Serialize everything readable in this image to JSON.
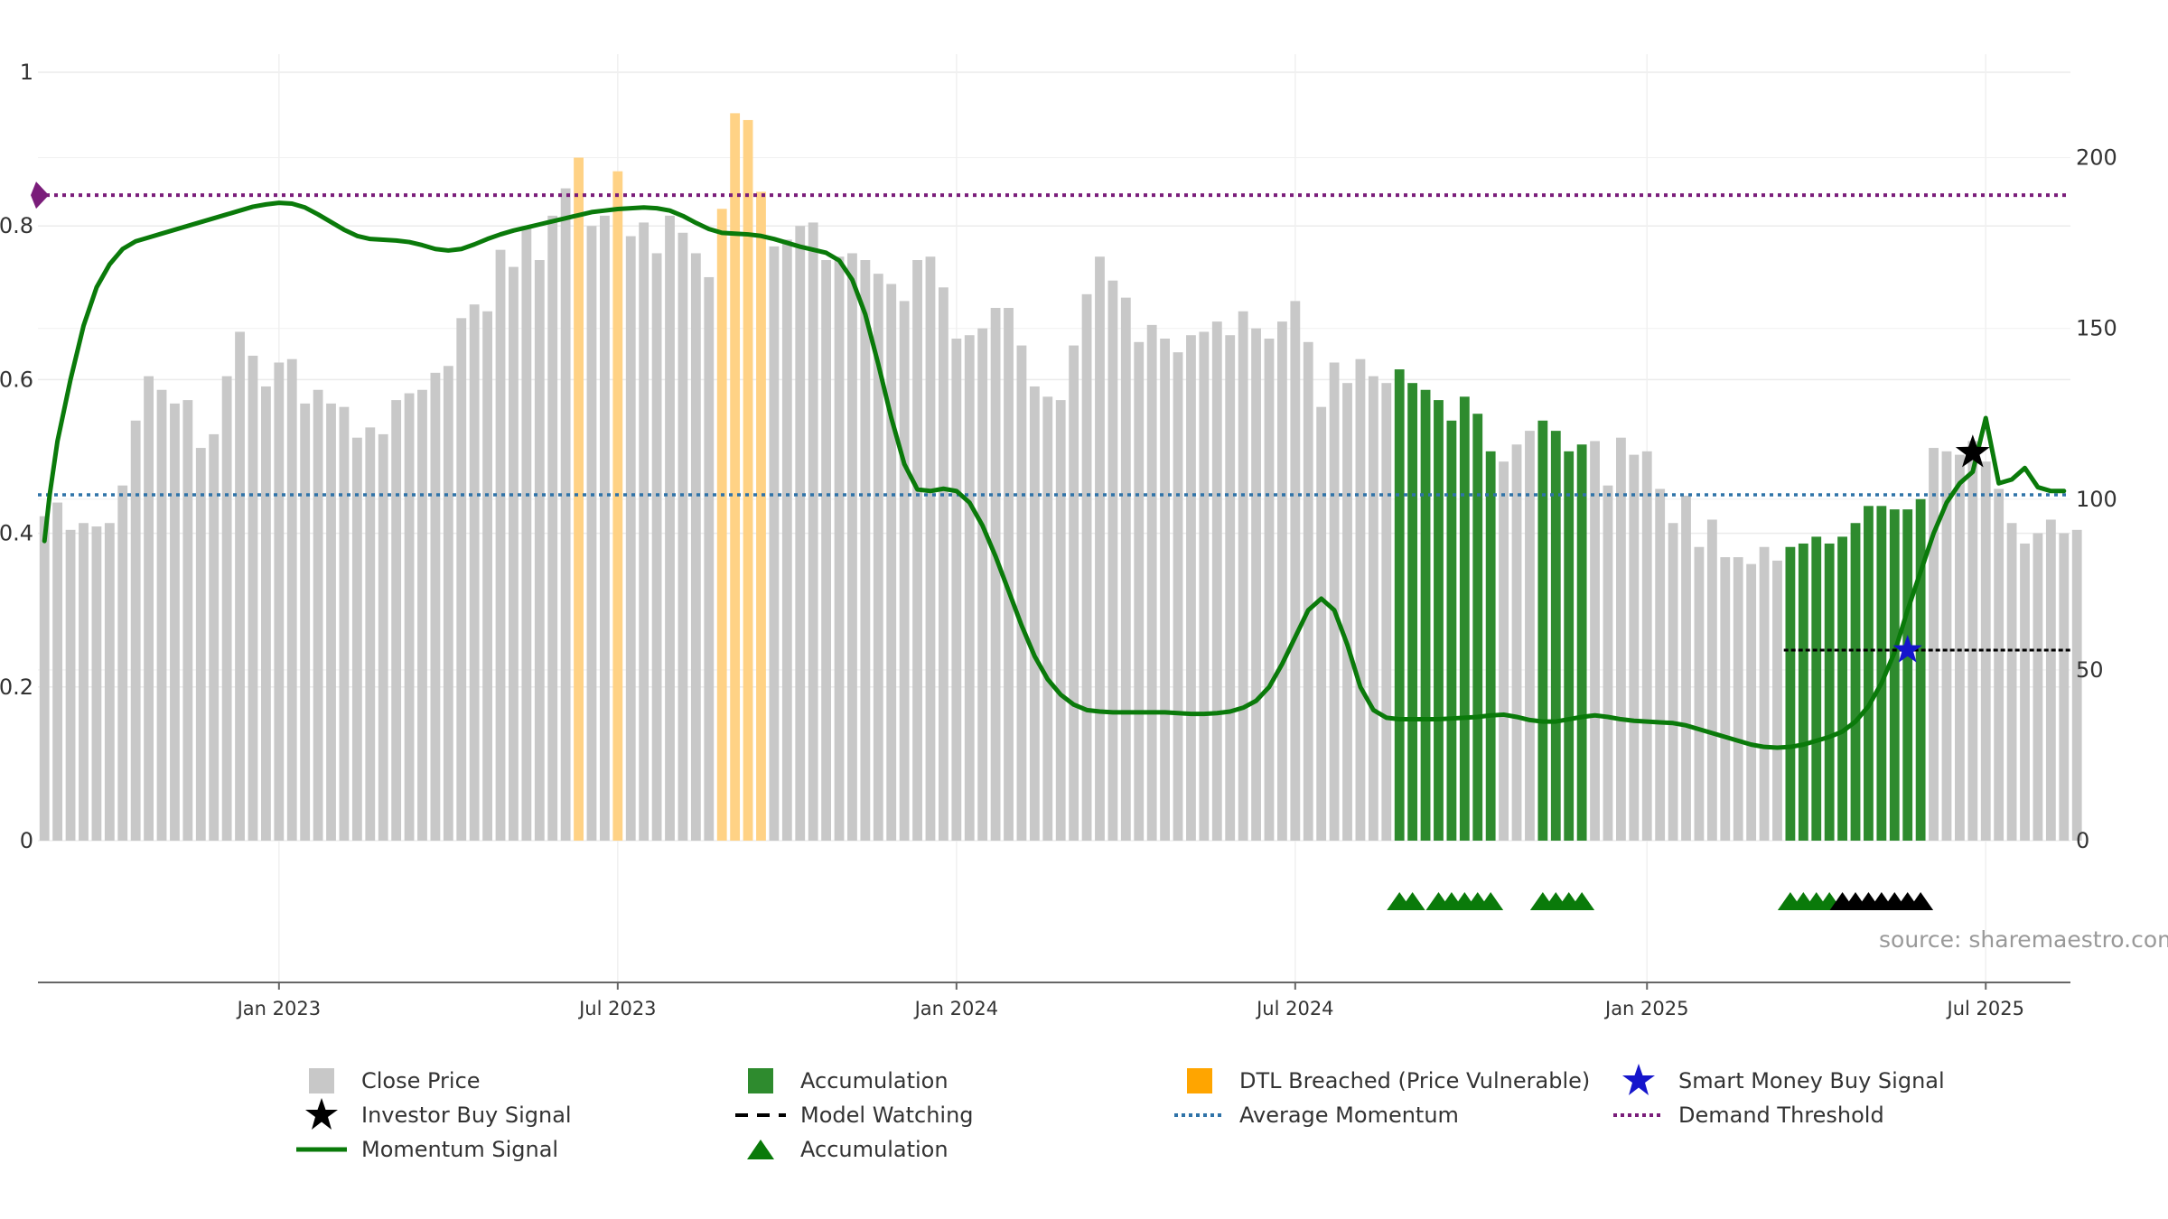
{
  "chart_data": {
    "type": "bar",
    "source_text": "source: sharemaestro.com",
    "left_axis": {
      "ylim": [
        0,
        1
      ],
      "ticks": [
        {
          "v": 0,
          "label": "0"
        },
        {
          "v": 0.2,
          "label": "0.2"
        },
        {
          "v": 0.4,
          "label": "0.4"
        },
        {
          "v": 0.6,
          "label": "0.6"
        },
        {
          "v": 0.8,
          "label": "0.8"
        },
        {
          "v": 1,
          "label": "1"
        }
      ]
    },
    "right_axis": {
      "ylim": [
        0,
        225
      ],
      "ticks": [
        {
          "v": 0,
          "label": "0"
        },
        {
          "v": 50,
          "label": "50"
        },
        {
          "v": 100,
          "label": "100"
        },
        {
          "v": 150,
          "label": "150"
        },
        {
          "v": 200,
          "label": "200"
        }
      ]
    },
    "x_axis": {
      "ticks": [
        {
          "w": 18,
          "label": "Jan 2023"
        },
        {
          "w": 44,
          "label": "Jul 2023"
        },
        {
          "w": 70,
          "label": "Jan 2024"
        },
        {
          "w": 96,
          "label": "Jul 2024"
        },
        {
          "w": 123,
          "label": "Jan 2025"
        },
        {
          "w": 149,
          "label": "Jul 2025"
        }
      ]
    },
    "weeks": 156,
    "close_price": [
      95,
      99,
      91,
      93,
      92,
      93,
      104,
      123,
      136,
      132,
      128,
      129,
      115,
      119,
      136,
      149,
      142,
      133,
      140,
      141,
      128,
      132,
      128,
      127,
      118,
      121,
      119,
      129,
      131,
      132,
      137,
      139,
      153,
      157,
      155,
      173,
      168,
      180,
      170,
      183,
      191,
      200,
      180,
      183,
      196,
      177,
      181,
      172,
      183,
      178,
      172,
      165,
      185,
      213,
      211,
      190,
      174,
      176,
      180,
      181,
      170,
      171,
      172,
      170,
      166,
      163,
      158,
      170,
      171,
      162,
      147,
      148,
      150,
      156,
      156,
      145,
      133,
      130,
      129,
      145,
      160,
      171,
      164,
      159,
      146,
      151,
      147,
      143,
      148,
      149,
      152,
      148,
      155,
      150,
      147,
      152,
      158,
      146,
      127,
      140,
      134,
      141,
      136,
      134,
      138,
      134,
      132,
      129,
      123,
      130,
      125,
      114,
      111,
      116,
      120,
      123,
      120,
      114,
      116,
      117,
      104,
      118,
      113,
      114,
      103,
      93,
      101,
      86,
      94,
      83,
      83,
      81,
      86,
      82,
      86,
      87,
      89,
      87,
      89,
      93,
      98,
      98,
      97,
      97,
      100,
      115,
      114,
      113,
      117,
      111,
      103,
      93,
      87,
      90,
      94,
      90,
      91
    ],
    "accumulation_weeks": [
      104,
      105,
      106,
      107,
      108,
      109,
      110,
      111,
      115,
      116,
      117,
      118,
      134,
      135,
      136,
      137,
      138,
      139,
      140,
      141,
      142,
      143,
      144
    ],
    "dtl_breached_weeks": [
      41,
      44,
      52,
      53,
      54,
      55
    ],
    "momentum_signal": [
      [
        0,
        0.39
      ],
      [
        0.4,
        0.45
      ],
      [
        1,
        0.52
      ],
      [
        2,
        0.6
      ],
      [
        3,
        0.67
      ],
      [
        4,
        0.72
      ],
      [
        5,
        0.75
      ],
      [
        6,
        0.77
      ],
      [
        7,
        0.78
      ],
      [
        8,
        0.785
      ],
      [
        9,
        0.79
      ],
      [
        10,
        0.795
      ],
      [
        11,
        0.8
      ],
      [
        12,
        0.805
      ],
      [
        13,
        0.81
      ],
      [
        14,
        0.815
      ],
      [
        15,
        0.82
      ],
      [
        16,
        0.825
      ],
      [
        17,
        0.828
      ],
      [
        18,
        0.83
      ],
      [
        19,
        0.829
      ],
      [
        20,
        0.824
      ],
      [
        21,
        0.815
      ],
      [
        22,
        0.805
      ],
      [
        23,
        0.795
      ],
      [
        24,
        0.787
      ],
      [
        25,
        0.783
      ],
      [
        26,
        0.782
      ],
      [
        27,
        0.781
      ],
      [
        28,
        0.779
      ],
      [
        29,
        0.775
      ],
      [
        30,
        0.77
      ],
      [
        31,
        0.768
      ],
      [
        32,
        0.77
      ],
      [
        33,
        0.776
      ],
      [
        34,
        0.783
      ],
      [
        35,
        0.789
      ],
      [
        36,
        0.794
      ],
      [
        37,
        0.798
      ],
      [
        38,
        0.802
      ],
      [
        39,
        0.806
      ],
      [
        40,
        0.81
      ],
      [
        41,
        0.814
      ],
      [
        42,
        0.818
      ],
      [
        43,
        0.82
      ],
      [
        44,
        0.822
      ],
      [
        45,
        0.823
      ],
      [
        46,
        0.824
      ],
      [
        47,
        0.823
      ],
      [
        48,
        0.82
      ],
      [
        49,
        0.813
      ],
      [
        50,
        0.804
      ],
      [
        51,
        0.796
      ],
      [
        52,
        0.791
      ],
      [
        53,
        0.79
      ],
      [
        54,
        0.789
      ],
      [
        55,
        0.787
      ],
      [
        56,
        0.783
      ],
      [
        57,
        0.778
      ],
      [
        58,
        0.773
      ],
      [
        59,
        0.769
      ],
      [
        60,
        0.765
      ],
      [
        61,
        0.755
      ],
      [
        62,
        0.73
      ],
      [
        63,
        0.685
      ],
      [
        64,
        0.62
      ],
      [
        65,
        0.55
      ],
      [
        66,
        0.49
      ],
      [
        67,
        0.457
      ],
      [
        68,
        0.455
      ],
      [
        69,
        0.458
      ],
      [
        70,
        0.455
      ],
      [
        71,
        0.44
      ],
      [
        72,
        0.41
      ],
      [
        73,
        0.37
      ],
      [
        74,
        0.325
      ],
      [
        75,
        0.28
      ],
      [
        76,
        0.24
      ],
      [
        77,
        0.21
      ],
      [
        78,
        0.19
      ],
      [
        79,
        0.177
      ],
      [
        80,
        0.17
      ],
      [
        81,
        0.168
      ],
      [
        82,
        0.167
      ],
      [
        83,
        0.167
      ],
      [
        84,
        0.167
      ],
      [
        85,
        0.167
      ],
      [
        86,
        0.167
      ],
      [
        87,
        0.166
      ],
      [
        88,
        0.165
      ],
      [
        89,
        0.165
      ],
      [
        90,
        0.166
      ],
      [
        91,
        0.168
      ],
      [
        92,
        0.173
      ],
      [
        93,
        0.182
      ],
      [
        94,
        0.2
      ],
      [
        95,
        0.23
      ],
      [
        96,
        0.265
      ],
      [
        97,
        0.3
      ],
      [
        98,
        0.315
      ],
      [
        99,
        0.3
      ],
      [
        100,
        0.255
      ],
      [
        101,
        0.2
      ],
      [
        102,
        0.17
      ],
      [
        103,
        0.16
      ],
      [
        104,
        0.158
      ],
      [
        105,
        0.158
      ],
      [
        106,
        0.158
      ],
      [
        107,
        0.158
      ],
      [
        108,
        0.159
      ],
      [
        109,
        0.16
      ],
      [
        110,
        0.161
      ],
      [
        111,
        0.163
      ],
      [
        112,
        0.164
      ],
      [
        113,
        0.161
      ],
      [
        114,
        0.157
      ],
      [
        115,
        0.155
      ],
      [
        116,
        0.155
      ],
      [
        117,
        0.158
      ],
      [
        118,
        0.161
      ],
      [
        119,
        0.163
      ],
      [
        120,
        0.161
      ],
      [
        121,
        0.158
      ],
      [
        122,
        0.156
      ],
      [
        123,
        0.155
      ],
      [
        124,
        0.154
      ],
      [
        125,
        0.153
      ],
      [
        126,
        0.15
      ],
      [
        127,
        0.145
      ],
      [
        128,
        0.14
      ],
      [
        129,
        0.135
      ],
      [
        130,
        0.13
      ],
      [
        131,
        0.125
      ],
      [
        132,
        0.122
      ],
      [
        133,
        0.121
      ],
      [
        134,
        0.122
      ],
      [
        135,
        0.125
      ],
      [
        136,
        0.13
      ],
      [
        137,
        0.135
      ],
      [
        138,
        0.142
      ],
      [
        139,
        0.155
      ],
      [
        140,
        0.175
      ],
      [
        141,
        0.205
      ],
      [
        142,
        0.245
      ],
      [
        143,
        0.3
      ],
      [
        144,
        0.35
      ],
      [
        145,
        0.4
      ],
      [
        146,
        0.44
      ],
      [
        147,
        0.465
      ],
      [
        148,
        0.48
      ],
      [
        149,
        0.55
      ],
      [
        150,
        0.465
      ],
      [
        151,
        0.47
      ],
      [
        152,
        0.485
      ],
      [
        153,
        0.46
      ],
      [
        154,
        0.455
      ],
      [
        155,
        0.455
      ]
    ],
    "average_momentum": 0.45,
    "demand_threshold": 0.84,
    "investor_buy_signal": {
      "w": 148,
      "v": 0.505
    },
    "smart_money_buy_signal": {
      "w": 143,
      "v": 0.248
    },
    "model_watching": {
      "from_w": 134,
      "to_w": 156,
      "v": 0.248
    },
    "accumulation_markers_green": [
      104,
      105,
      107,
      108,
      109,
      110,
      111,
      115,
      116,
      117,
      118,
      134,
      135,
      136,
      137
    ],
    "accumulation_markers_black": [
      138,
      139,
      140,
      141,
      142,
      143,
      144
    ],
    "legend": [
      {
        "label": "Close Price",
        "symbol": "gray-square"
      },
      {
        "label": "Accumulation",
        "symbol": "green-square"
      },
      {
        "label": "DTL Breached (Price Vulnerable)",
        "symbol": "orange-square"
      },
      {
        "label": "Smart Money Buy Signal",
        "symbol": "blue-star"
      },
      {
        "label": "Investor Buy Signal",
        "symbol": "black-star"
      },
      {
        "label": "Model Watching",
        "symbol": "black-dash"
      },
      {
        "label": "Average Momentum",
        "symbol": "blue-dotted"
      },
      {
        "label": "Demand Threshold",
        "symbol": "purple-dotted"
      },
      {
        "label": "Momentum Signal",
        "symbol": "green-line"
      },
      {
        "label": "Accumulation",
        "symbol": "green-triangle"
      }
    ]
  },
  "colors": {
    "close_price": "#c8c8c8",
    "accumulation": "#2e8b2e",
    "dtl": "#ffd285",
    "momentum": "#0a7a0a",
    "average": "#2f73a8",
    "threshold": "#7a1d7a",
    "smart_money": "#1515cc",
    "investor": "#000000"
  }
}
